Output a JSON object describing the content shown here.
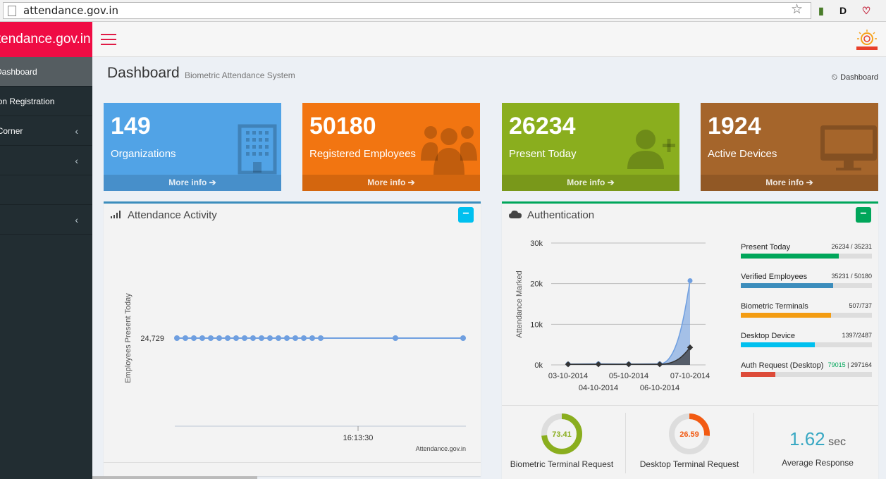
{
  "browser": {
    "url": "attendance.gov.in"
  },
  "sidebar": {
    "logo_text": "attendance.gov.in",
    "items": [
      {
        "label": "Dashboard",
        "chevron": ""
      },
      {
        "label": "Organization Registration",
        "chevron": ""
      },
      {
        "label": "Employee Corner",
        "chevron": "‹"
      },
      {
        "label": "",
        "chevron": "‹"
      },
      {
        "label": "",
        "chevron": ""
      },
      {
        "label": "",
        "chevron": "‹"
      }
    ]
  },
  "header": {
    "title": "Dashboard",
    "subtitle": "Biometric Attendance System",
    "breadcrumb": "Dashboard"
  },
  "infoboxes": [
    {
      "number": "149",
      "caption": "Organizations",
      "more": "More info",
      "color": "#51a3e6"
    },
    {
      "number": "50180",
      "caption": "Registered Employees",
      "more": "More info",
      "color": "#f27511"
    },
    {
      "number": "26234",
      "caption": "Present Today",
      "more": "More info",
      "color": "#8aae1e"
    },
    {
      "number": "1924",
      "caption": "Active Devices",
      "more": "More info",
      "color": "#a5652b"
    }
  ],
  "activity": {
    "title": "Attendance Activity",
    "ylabel": "Employees Present Today",
    "value_label": "24,729",
    "time_label": "16:13:30",
    "credit": "Attendance.gov.in"
  },
  "auth": {
    "title": "Authentication",
    "ylabel": "Attendance Marked",
    "progress": [
      {
        "label": "Present Today",
        "value": "26234 / 35231",
        "fraction": 0.745,
        "color": "#00a65a"
      },
      {
        "label": "Verified Employees",
        "value": "35231 / 50180",
        "fraction": 0.702,
        "color": "#3c8dbc"
      },
      {
        "label": "Biometric Terminals",
        "value": "507/737",
        "fraction": 0.688,
        "color": "#f39c12"
      },
      {
        "label": "Desktop Device",
        "value": "1397/2487",
        "fraction": 0.562,
        "color": "#00c0ef"
      },
      {
        "label": "Auth Request (Desktop)",
        "value_green": "79015",
        "value_rest": " | 297164",
        "fraction": 0.266,
        "color": "#dd4b39"
      }
    ],
    "knobs": [
      {
        "value": "73.41",
        "fraction": 0.7341,
        "label": "Biometric Terminal Request",
        "color": "#8aae1e"
      },
      {
        "value": "26.59",
        "fraction": 0.2659,
        "label": "Desktop Terminal Request",
        "color": "#f25a12"
      }
    ],
    "avg_value": "1.62",
    "avg_unit": "sec",
    "avg_label": "Average Response"
  },
  "chart_data": [
    {
      "type": "line",
      "title": "Attendance Activity",
      "ylabel": "Employees Present Today",
      "x_tick_labels": [
        "16:13:30"
      ],
      "series": [
        {
          "values": [
            24729,
            24729,
            24729,
            24729,
            24729,
            24729,
            24729,
            24729,
            24729,
            24729,
            24729,
            24729,
            24729,
            24729,
            24729,
            24729,
            24729,
            24729,
            24729,
            24729
          ]
        }
      ]
    },
    {
      "type": "area",
      "title": "Authentication",
      "ylabel": "Attendance Marked",
      "ylim": [
        0,
        30000
      ],
      "y_ticks": [
        "0k",
        "10k",
        "20k",
        "30k"
      ],
      "x_tick_labels": [
        "03-10-2014",
        "04-10-2014",
        "05-10-2014",
        "06-10-2014",
        "07-10-2014"
      ],
      "categories": [
        "03-10-2014",
        "04-10-2014",
        "05-10-2014",
        "06-10-2014",
        "07-10-2014"
      ],
      "series": [
        {
          "values": [
            200,
            250,
            200,
            250,
            20729
          ],
          "color": "#6f9fe0"
        },
        {
          "values": [
            150,
            150,
            150,
            150,
            4300
          ],
          "color": "#333333"
        }
      ],
      "grid": true
    }
  ]
}
